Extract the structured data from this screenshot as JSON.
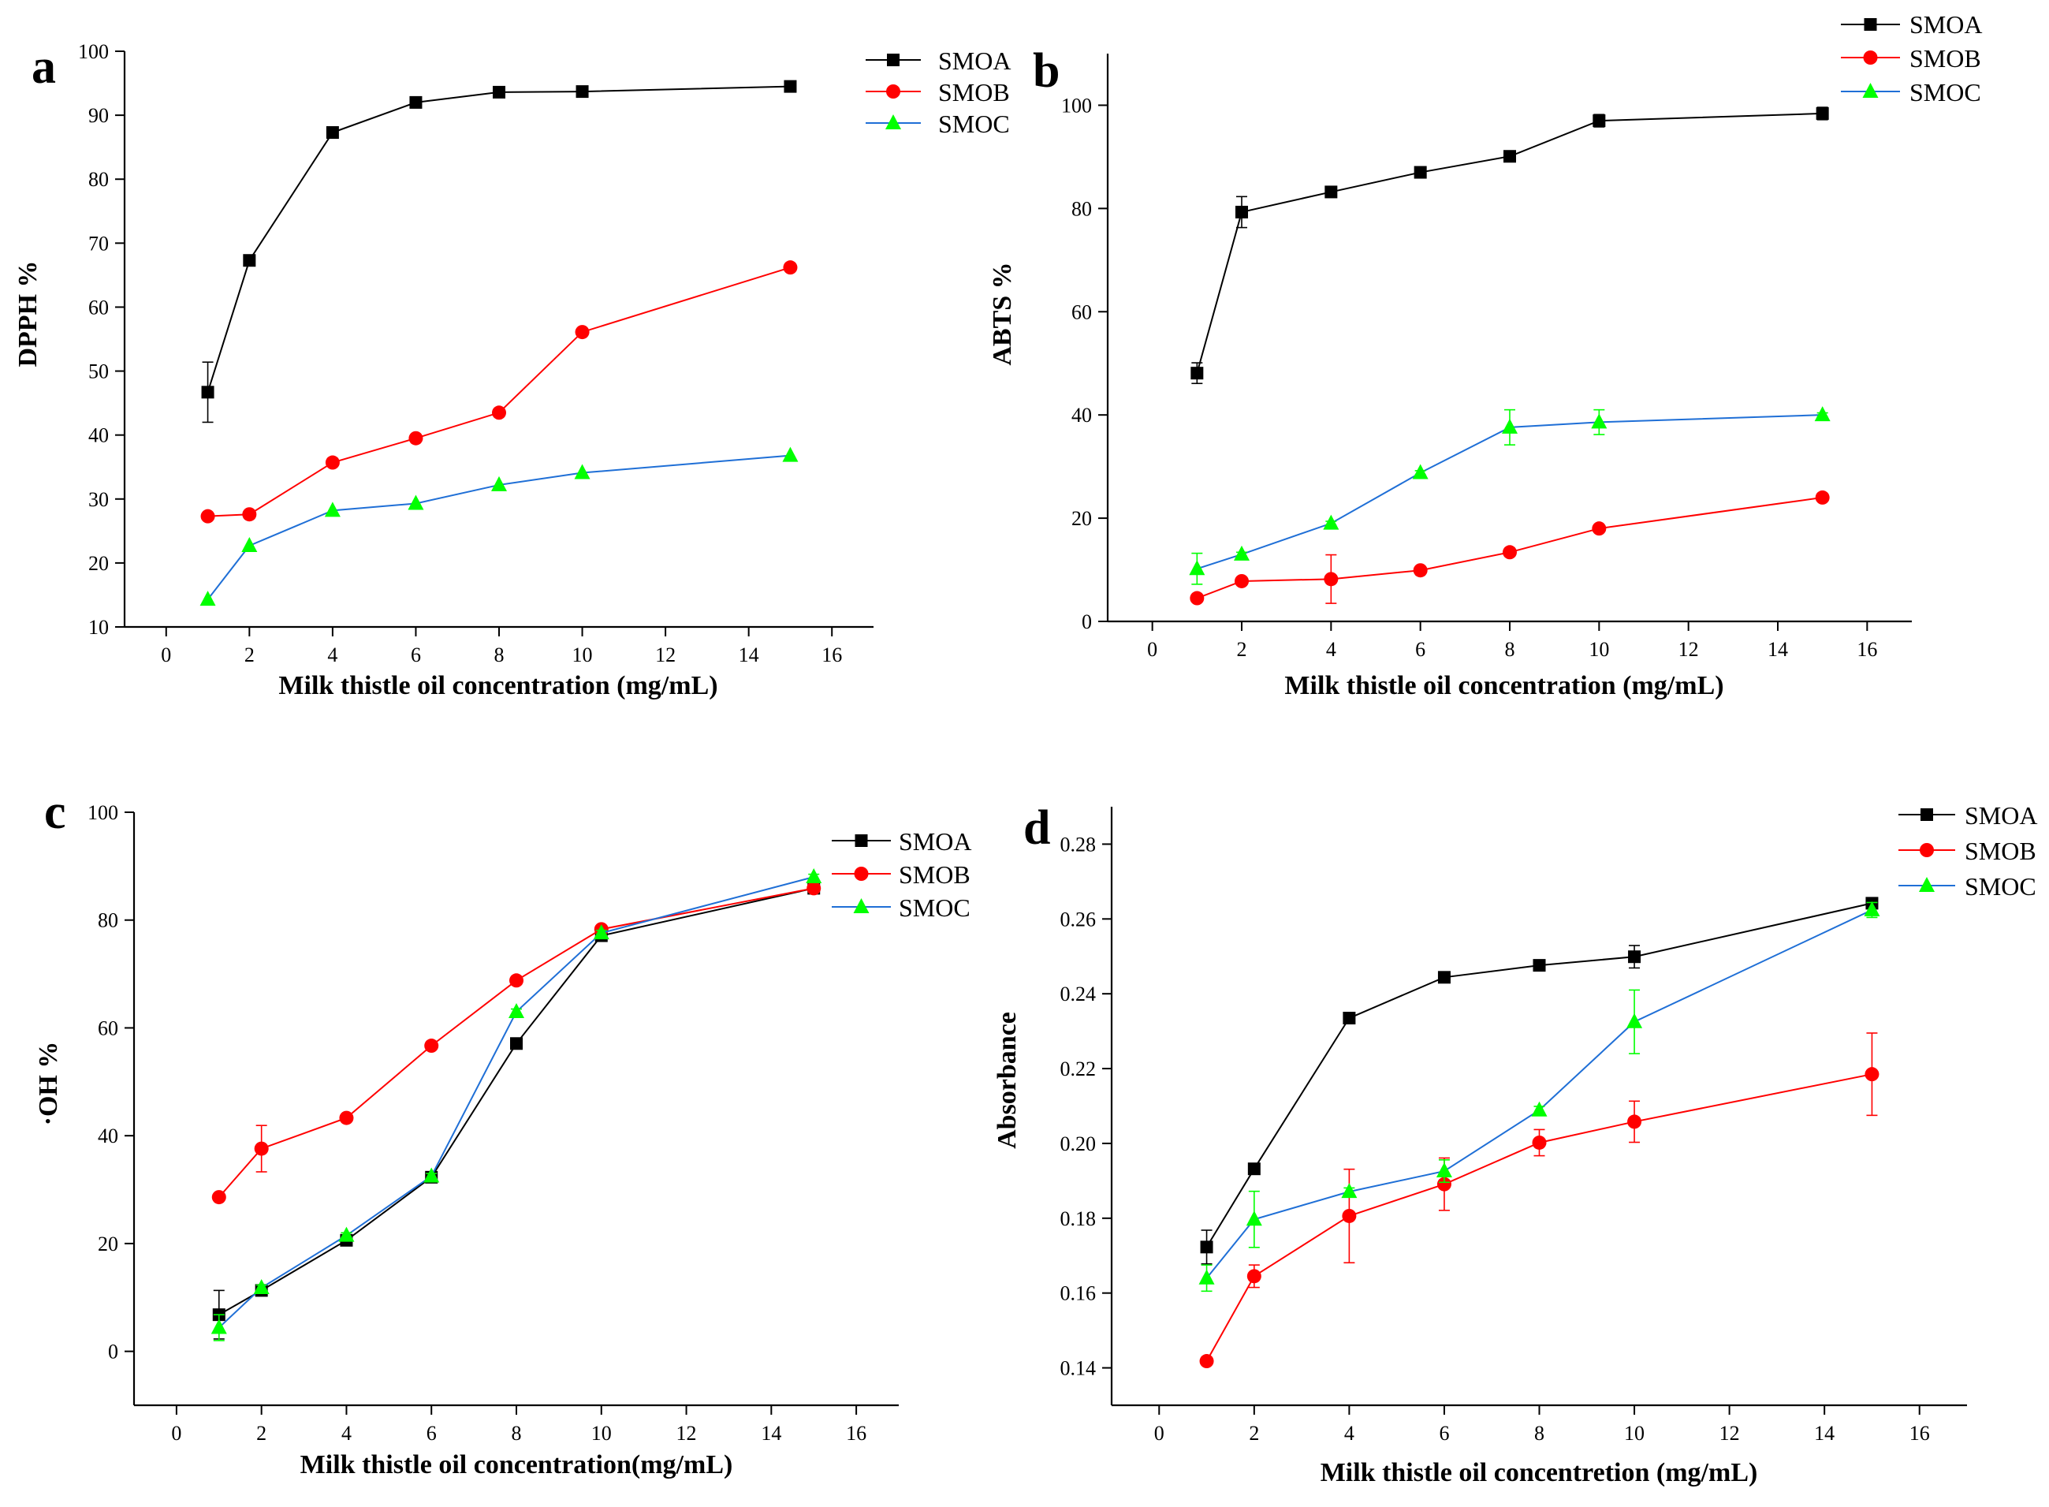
{
  "figure": {
    "series_styles": {
      "SMOA": {
        "color": "#000000",
        "marker": "square"
      },
      "SMOB": {
        "color": "#ff0000",
        "marker": "circle"
      },
      "SMOC": {
        "color": "#00ff00",
        "line_color": "#1f6fd6",
        "marker": "triangle"
      }
    },
    "axis_color": "#000000"
  },
  "chart_data": [
    {
      "panel": "a",
      "type": "line",
      "title": "",
      "xlabel": "Milk thistle oil concentration (mg/mL)",
      "ylabel": "DPPH %",
      "xlim": [
        -1,
        17
      ],
      "ylim": [
        10,
        100
      ],
      "xticks": [
        "0",
        "2",
        "4",
        "6",
        "8",
        "10",
        "12",
        "14",
        "16"
      ],
      "yticks": [
        "10",
        "20",
        "30",
        "40",
        "50",
        "60",
        "70",
        "80",
        "90",
        "100"
      ],
      "legend_position": "top-right",
      "series": [
        {
          "name": "SMOA",
          "x": [
            1,
            2,
            4,
            6,
            8,
            10,
            15
          ],
          "values": [
            46.7,
            67.3,
            87.3,
            92.0,
            93.6,
            93.7,
            94.5
          ],
          "errors": [
            4.7,
            0.4,
            0.4,
            0.3,
            0.3,
            0.3,
            0.3
          ]
        },
        {
          "name": "SMOB",
          "x": [
            1,
            2,
            4,
            6,
            8,
            10,
            15
          ],
          "values": [
            27.3,
            27.6,
            35.7,
            39.5,
            43.5,
            56.1,
            66.2
          ],
          "errors": [
            0,
            0,
            0,
            0,
            0,
            0,
            0
          ]
        },
        {
          "name": "SMOC",
          "x": [
            1,
            2,
            4,
            6,
            8,
            10,
            15
          ],
          "values": [
            14.3,
            22.7,
            28.2,
            29.3,
            32.2,
            34.1,
            36.8
          ],
          "errors": [
            0,
            0,
            0,
            0,
            0,
            0,
            0
          ]
        }
      ]
    },
    {
      "panel": "b",
      "type": "line",
      "title": "",
      "xlabel": "Milk thistle oil concentration (mg/mL)",
      "ylabel": "ABTS %",
      "xlim": [
        -1,
        17
      ],
      "ylim": [
        0,
        110
      ],
      "xticks": [
        "0",
        "2",
        "4",
        "6",
        "8",
        "10",
        "12",
        "14",
        "16"
      ],
      "yticks": [
        "0",
        "20",
        "40",
        "60",
        "80",
        "100"
      ],
      "legend_position": "top-right",
      "series": [
        {
          "name": "SMOA",
          "x": [
            1,
            2,
            4,
            6,
            8,
            10,
            15
          ],
          "values": [
            48.1,
            79.3,
            83.2,
            87.0,
            90.1,
            97.0,
            98.4
          ],
          "errors": [
            2.0,
            3.0,
            0.4,
            0.4,
            0.4,
            1.2,
            1.2
          ]
        },
        {
          "name": "SMOB",
          "x": [
            1,
            2,
            4,
            6,
            8,
            10,
            15
          ],
          "values": [
            4.5,
            7.8,
            8.2,
            9.9,
            13.4,
            18.0,
            24.0
          ],
          "errors": [
            0,
            0,
            4.7,
            0,
            0,
            0,
            0
          ]
        },
        {
          "name": "SMOC",
          "x": [
            1,
            2,
            4,
            6,
            8,
            10,
            15
          ],
          "values": [
            10.2,
            13.0,
            19.0,
            28.8,
            37.6,
            38.6,
            40.0
          ],
          "errors": [
            3.0,
            0.4,
            0.4,
            0.4,
            3.4,
            2.4,
            0.4
          ]
        }
      ]
    },
    {
      "panel": "c",
      "type": "line",
      "title": "",
      "xlabel": "Milk thistle oil concentration(mg/mL)",
      "ylabel": "·OH %",
      "xlim": [
        -1,
        17
      ],
      "ylim": [
        -10,
        100
      ],
      "xticks": [
        "0",
        "2",
        "4",
        "6",
        "8",
        "10",
        "12",
        "14",
        "16"
      ],
      "yticks": [
        "0",
        "20",
        "40",
        "60",
        "80",
        "100"
      ],
      "legend_position": "top-right",
      "series": [
        {
          "name": "SMOA",
          "x": [
            1,
            2,
            4,
            6,
            8,
            10,
            15
          ],
          "values": [
            6.8,
            11.3,
            20.6,
            32.3,
            57.1,
            77.1,
            85.9
          ],
          "errors": [
            4.5,
            0.5,
            0.5,
            0.5,
            0.5,
            0.5,
            0.5
          ]
        },
        {
          "name": "SMOB",
          "x": [
            1,
            2,
            4,
            6,
            8,
            10,
            15
          ],
          "values": [
            28.6,
            37.6,
            43.3,
            56.7,
            68.8,
            78.3,
            85.9
          ],
          "errors": [
            0,
            4.3,
            0,
            0,
            0,
            0,
            0
          ]
        },
        {
          "name": "SMOC",
          "x": [
            1,
            2,
            4,
            6,
            8,
            10,
            15
          ],
          "values": [
            4.4,
            11.8,
            21.5,
            32.5,
            63.0,
            77.6,
            88.0
          ],
          "errors": [
            2.4,
            0.5,
            0.5,
            0.5,
            0.5,
            0.5,
            0.5
          ]
        }
      ]
    },
    {
      "panel": "d",
      "type": "line",
      "title": "",
      "xlabel": "Milk thistle oil concentretion (mg/mL)",
      "ylabel": "Absorbance",
      "xlim": [
        -1,
        17
      ],
      "ylim": [
        0.13,
        0.29
      ],
      "xticks": [
        "0",
        "2",
        "4",
        "6",
        "8",
        "10",
        "12",
        "14",
        "16"
      ],
      "yticks": [
        "0.14",
        "0.16",
        "0.18",
        "0.20",
        "0.22",
        "0.24",
        "0.26",
        "0.28"
      ],
      "legend_position": "top-right",
      "series": [
        {
          "name": "SMOA",
          "x": [
            1,
            2,
            4,
            6,
            8,
            10,
            15
          ],
          "values": [
            0.1723,
            0.1932,
            0.2335,
            0.2444,
            0.2476,
            0.2499,
            0.2642
          ],
          "errors": [
            0.0045,
            0.001,
            0.001,
            0.001,
            0.001,
            0.003,
            0.001
          ]
        },
        {
          "name": "SMOB",
          "x": [
            1,
            2,
            4,
            6,
            8,
            10,
            15
          ],
          "values": [
            0.1418,
            0.1645,
            0.1806,
            0.1891,
            0.2002,
            0.2058,
            0.2185
          ],
          "errors": [
            0.001,
            0.003,
            0.0125,
            0.007,
            0.0035,
            0.0055,
            0.011
          ]
        },
        {
          "name": "SMOC",
          "x": [
            1,
            2,
            4,
            6,
            8,
            10,
            15
          ],
          "values": [
            0.164,
            0.1797,
            0.1871,
            0.1926,
            0.2089,
            0.2325,
            0.2624
          ],
          "errors": [
            0.0035,
            0.0075,
            0.001,
            0.003,
            0.001,
            0.0085,
            0.002
          ]
        }
      ]
    }
  ]
}
